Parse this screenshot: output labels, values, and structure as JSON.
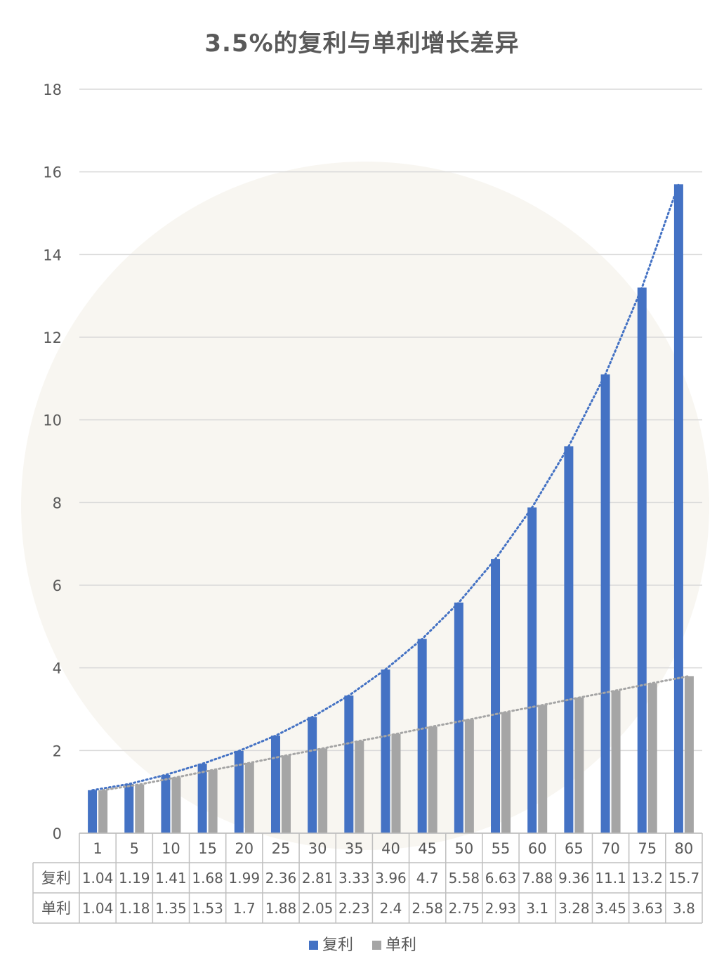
{
  "chart_data": {
    "type": "bar",
    "title": "3.5%的复利与单利增长差异",
    "categories": [
      "1",
      "5",
      "10",
      "15",
      "20",
      "25",
      "30",
      "35",
      "40",
      "45",
      "50",
      "55",
      "60",
      "65",
      "70",
      "75",
      "80"
    ],
    "series": [
      {
        "name": "复利",
        "color": "#4472C4",
        "values": [
          1.04,
          1.19,
          1.41,
          1.68,
          1.99,
          2.36,
          2.81,
          3.33,
          3.96,
          4.7,
          5.58,
          6.63,
          7.88,
          9.36,
          11.1,
          13.2,
          15.7
        ],
        "labels": [
          "1.04",
          "1.19",
          "1.41",
          "1.68",
          "1.99",
          "2.36",
          "2.81",
          "3.33",
          "3.96",
          "4.7",
          "5.58",
          "6.63",
          "7.88",
          "9.36",
          "11.1",
          "13.2",
          "15.7"
        ]
      },
      {
        "name": "单利",
        "color": "#A5A5A5",
        "values": [
          1.04,
          1.18,
          1.35,
          1.53,
          1.7,
          1.88,
          2.05,
          2.23,
          2.4,
          2.58,
          2.75,
          2.93,
          3.1,
          3.28,
          3.45,
          3.63,
          3.8
        ],
        "labels": [
          "1.04",
          "1.18",
          "1.35",
          "1.53",
          "1.7",
          "1.88",
          "2.05",
          "2.23",
          "2.4",
          "2.58",
          "2.75",
          "2.93",
          "3.1",
          "3.28",
          "3.45",
          "3.63",
          "3.8"
        ]
      }
    ],
    "ylim": [
      0,
      18
    ],
    "yticks": [
      "0",
      "2",
      "4",
      "6",
      "8",
      "10",
      "12",
      "14",
      "16",
      "18"
    ],
    "trendlines": true,
    "grid": true,
    "legend": "bottom",
    "data_table": true
  }
}
